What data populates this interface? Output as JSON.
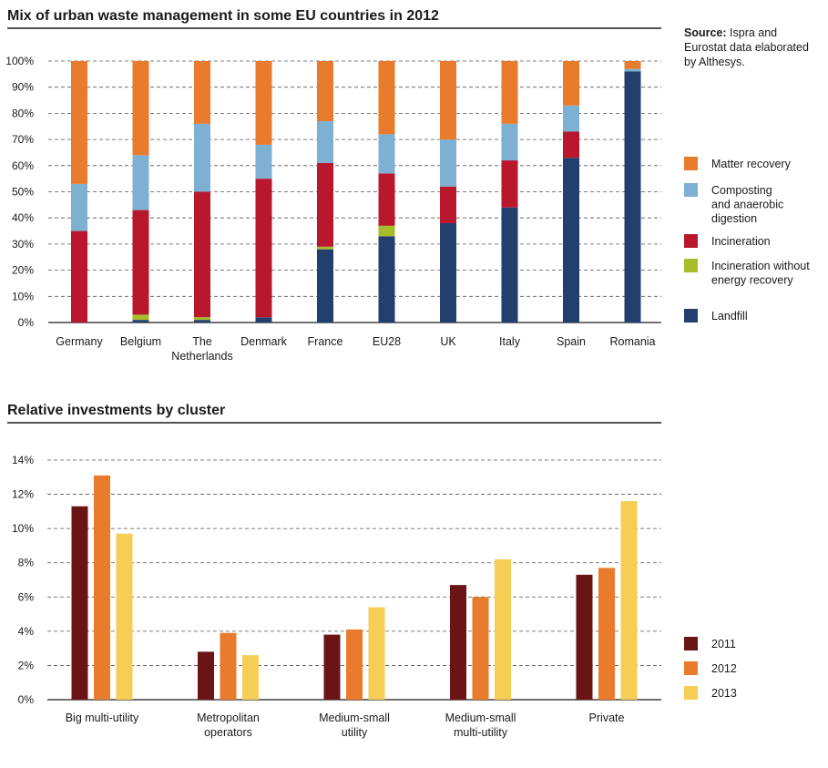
{
  "source": {
    "label": "Source:",
    "lines": [
      " Ispra and",
      "Eurostat data elaborated",
      "by Althesys."
    ]
  },
  "chart_data": [
    {
      "type": "bar",
      "stacked": true,
      "title": "Mix of urban waste management in some EU countries in 2012",
      "categories": [
        [
          "Germany"
        ],
        [
          "Belgium"
        ],
        [
          "The",
          "Netherlands"
        ],
        [
          "Denmark"
        ],
        [
          "France"
        ],
        [
          "EU28"
        ],
        [
          "UK"
        ],
        [
          "Italy"
        ],
        [
          "Spain"
        ],
        [
          "Romania"
        ]
      ],
      "ylim": [
        0,
        100
      ],
      "yticks": [
        "0%",
        "10%",
        "20%",
        "30%",
        "40%",
        "50%",
        "60%",
        "70%",
        "80%",
        "90%",
        "100%"
      ],
      "grid": true,
      "legend_position": "right",
      "series": [
        {
          "name": "Landfill",
          "lines": [
            "Landfill"
          ],
          "color": "#233f6e",
          "values": [
            0,
            1,
            1,
            2,
            28,
            33,
            38,
            44,
            63,
            96
          ]
        },
        {
          "name": "Incineration without energy recovery",
          "lines": [
            "Incineration without",
            "energy recovery"
          ],
          "color": "#a7bd2a",
          "values": [
            0,
            2,
            1,
            0,
            1,
            4,
            0,
            0,
            0,
            0
          ]
        },
        {
          "name": "Incineration",
          "lines": [
            "Incineration"
          ],
          "color": "#b8172c",
          "values": [
            35,
            40,
            48,
            53,
            32,
            20,
            14,
            18,
            10,
            0
          ]
        },
        {
          "name": "Composting and anaerobic digestion",
          "lines": [
            "Composting",
            "and anaerobic",
            "digestion"
          ],
          "color": "#7eb0d3",
          "values": [
            18,
            21,
            26,
            13,
            16,
            15,
            18,
            14,
            10,
            1
          ]
        },
        {
          "name": "Matter recovery",
          "lines": [
            "Matter recovery"
          ],
          "color": "#e87b2c",
          "values": [
            47,
            36,
            24,
            32,
            23,
            28,
            30,
            24,
            17,
            3
          ]
        }
      ]
    },
    {
      "type": "bar",
      "title": "Relative investments by cluster",
      "categories": [
        [
          "Big multi-utility"
        ],
        [
          "Metropolitan",
          "operators"
        ],
        [
          "Medium-small",
          "utility"
        ],
        [
          "Medium-small",
          "multi-utility"
        ],
        [
          "Private"
        ]
      ],
      "ylim": [
        0,
        14
      ],
      "yticks": [
        "0%",
        "2%",
        "4%",
        "6%",
        "8%",
        "10%",
        "12%",
        "14%"
      ],
      "grid": true,
      "legend_position": "right",
      "series": [
        {
          "name": "2011",
          "color": "#6b1416",
          "values": [
            11.3,
            2.8,
            3.8,
            6.7,
            7.3
          ]
        },
        {
          "name": "2012",
          "color": "#e87b2c",
          "values": [
            13.1,
            3.9,
            4.1,
            6.0,
            7.7
          ]
        },
        {
          "name": "2013",
          "color": "#f6ce55",
          "values": [
            9.7,
            2.6,
            5.4,
            8.2,
            11.6
          ]
        }
      ]
    }
  ]
}
